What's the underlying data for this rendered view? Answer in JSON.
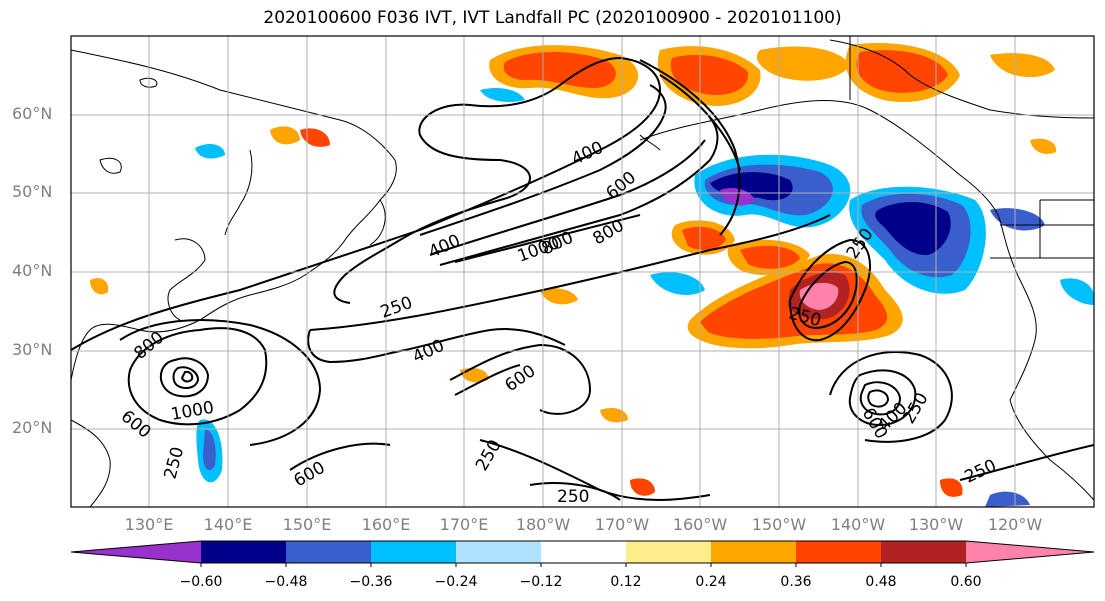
{
  "title": "2020100600 F036 IVT, IVT Landfall PC (2020100900 - 2020101100)",
  "lat_labels": [
    "60°N",
    "50°N",
    "40°N",
    "30°N",
    "20°N"
  ],
  "lon_labels": [
    "130°E",
    "140°E",
    "150°E",
    "160°E",
    "170°E",
    "180°W",
    "170°W",
    "160°W",
    "150°W",
    "140°W",
    "130°W",
    "120°W"
  ],
  "contour_labels": [
    "400",
    "600",
    "400",
    "1000",
    "800",
    "800",
    "250",
    "250",
    "400",
    "600",
    "800",
    "1000",
    "600",
    "250",
    "600",
    "250",
    "250",
    "250",
    "600",
    "400",
    "250",
    "250"
  ],
  "colorbar": {
    "colors": [
      "#9932cc",
      "#00008b",
      "#3a5fcd",
      "#00bfff",
      "#b0e2ff",
      "#ffffff",
      "#ffec8b",
      "#ffa500",
      "#ff4500",
      "#b22222",
      "#ff82ab"
    ],
    "tick_labels": [
      "−0.60",
      "−0.48",
      "−0.36",
      "−0.24",
      "−0.12",
      "0.12",
      "0.24",
      "0.36",
      "0.48",
      "0.60"
    ]
  }
}
